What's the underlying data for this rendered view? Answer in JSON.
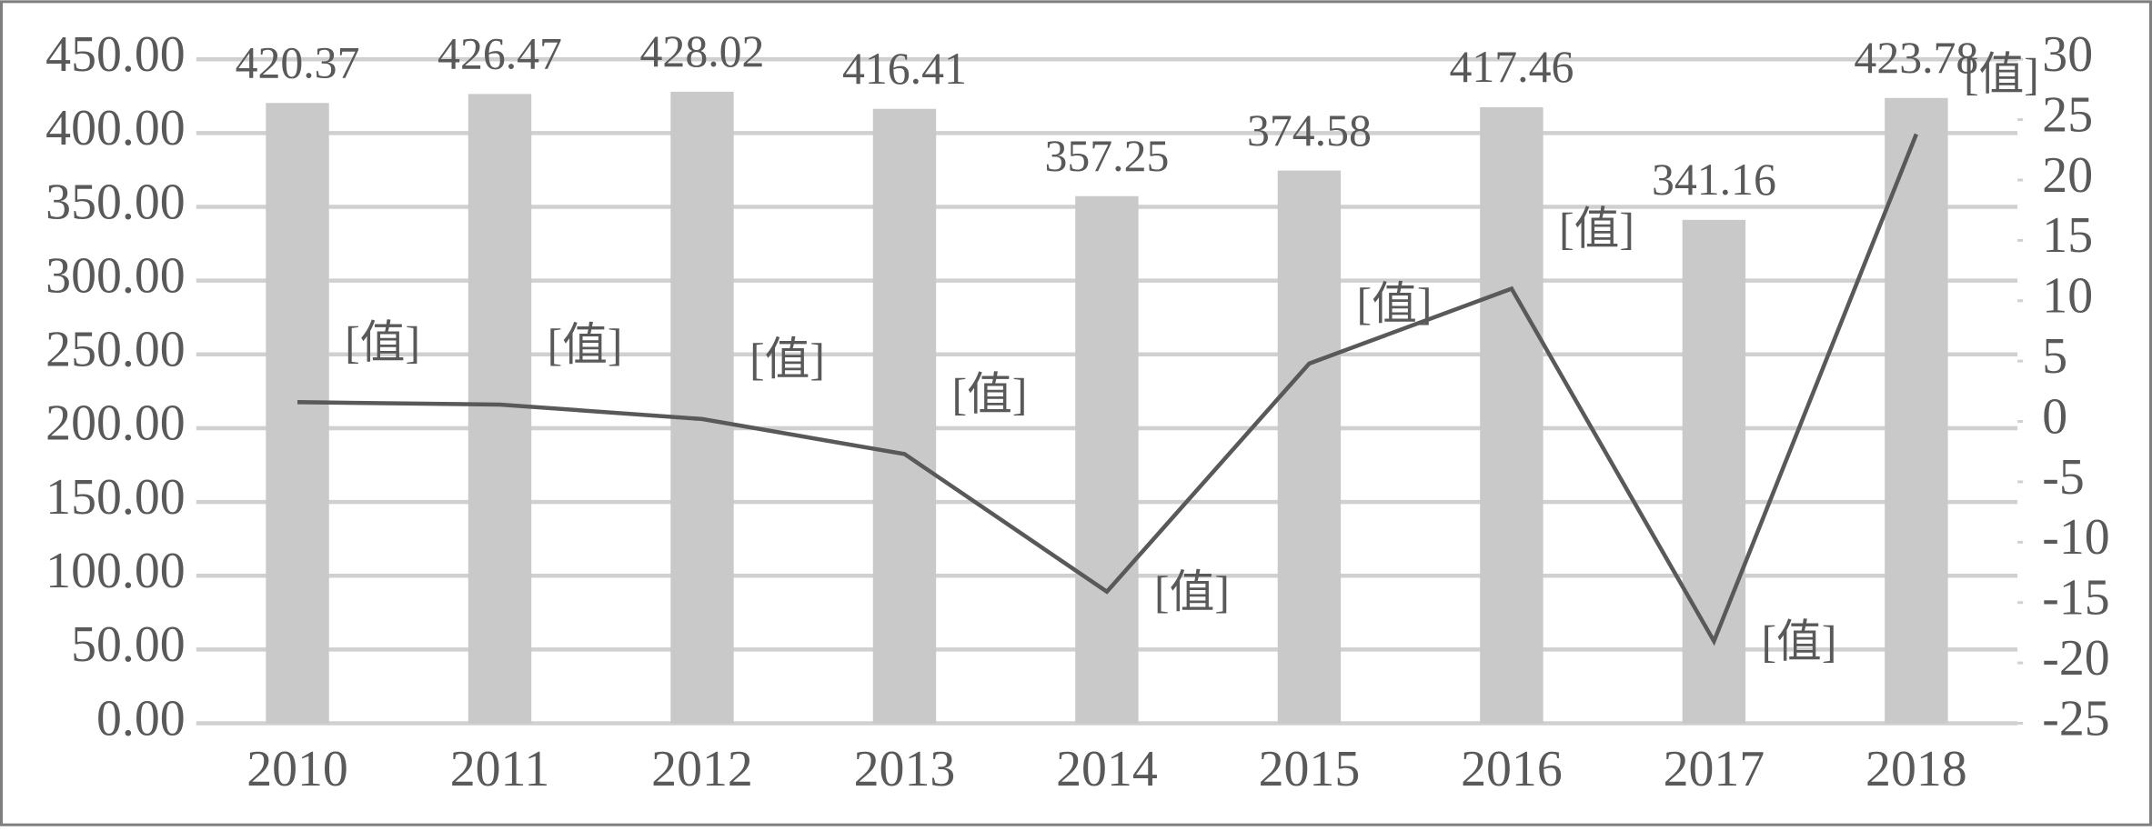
{
  "chart_data": {
    "type": "bar_line",
    "categories": [
      "2010",
      "2011",
      "2012",
      "2013",
      "2014",
      "2015",
      "2016",
      "2017",
      "2018"
    ],
    "series": [
      {
        "type": "bar",
        "color": "#c9c9c9",
        "values": [
          420.37,
          426.47,
          428.02,
          416.41,
          357.25,
          374.58,
          417.46,
          341.16,
          423.78
        ]
      },
      {
        "type": "line",
        "axis": "y2",
        "color": "#595959",
        "values": [
          1.6,
          1.4,
          0.2,
          -2.7,
          -14.1,
          4.8,
          11.0,
          -18.2,
          23.8
        ],
        "value_labels": [
          "[值]",
          "[值]",
          "[值]",
          "[值]",
          "[值]",
          "[值]",
          "[值]",
          "[值]",
          "[值]"
        ]
      }
    ],
    "ylim": [
      0,
      450
    ],
    "yticks": [
      {
        "value": 0,
        "label": "0.00"
      },
      {
        "value": 50,
        "label": "50.00"
      },
      {
        "value": 100,
        "label": "100.00"
      },
      {
        "value": 150,
        "label": "150.00"
      },
      {
        "value": 200,
        "label": "200.00"
      },
      {
        "value": 250,
        "label": "250.00"
      },
      {
        "value": 300,
        "label": "300.00"
      },
      {
        "value": 350,
        "label": "350.00"
      },
      {
        "value": 400,
        "label": "400.00"
      },
      {
        "value": 450,
        "label": "450.00"
      }
    ],
    "y2lim": [
      -25,
      30
    ],
    "y2ticks": [
      -25,
      -20,
      -15,
      -10,
      -5,
      0,
      5,
      10,
      15,
      20,
      25,
      30
    ],
    "grid": true
  }
}
